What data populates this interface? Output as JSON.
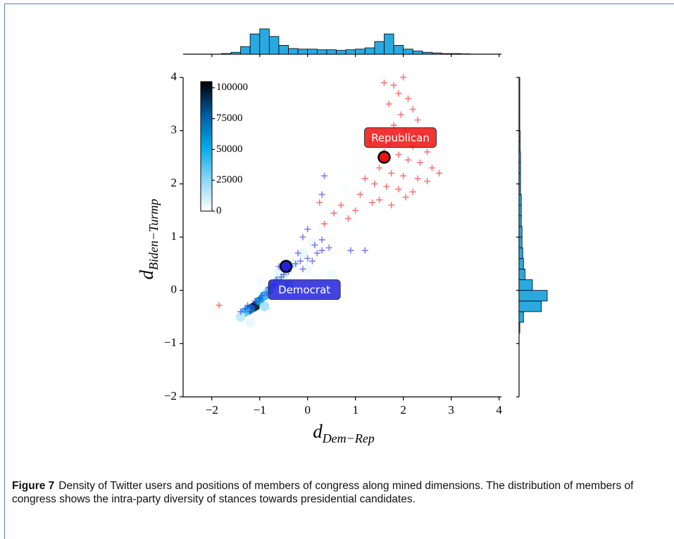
{
  "caption": {
    "label": "Figure 7",
    "text": "Density of Twitter users and positions of members of congress along mined dimensions. The distribution of members of congress shows the intra-party diversity of stances towards presidential candidates."
  },
  "chart_data": {
    "type": "scatter",
    "xlabel": {
      "main": "d",
      "sub": "Dem−Rep"
    },
    "ylabel": {
      "main": "d",
      "sub": "Biden−Turmp"
    },
    "xlim": [
      -2.6,
      4.05
    ],
    "ylim": [
      -2,
      4
    ],
    "xticks": [
      {
        "value": -2,
        "label": "−2"
      },
      {
        "value": -1,
        "label": "−1"
      },
      0,
      1,
      2,
      3,
      4
    ],
    "yticks": [
      {
        "value": -2,
        "label": "−2"
      },
      {
        "value": -1,
        "label": "−1"
      },
      0,
      1,
      2,
      3,
      4
    ],
    "series": [
      {
        "name": "Republican",
        "color": "#ee2222",
        "x": [
          1.6,
          1.8,
          2.0,
          1.9,
          2.1,
          1.7,
          2.2,
          1.95,
          2.3,
          1.8,
          2.05,
          2.4,
          1.3,
          1.7,
          2.2,
          2.5,
          1.9,
          2.1,
          2.35,
          2.6,
          1.5,
          1.75,
          2.0,
          2.3,
          2.75,
          1.2,
          1.4,
          1.65,
          1.9,
          2.2,
          1.1,
          1.5,
          1.75,
          1.0,
          0.7,
          0.55,
          0.35,
          0.85,
          1.35,
          2.05,
          2.5,
          1.6,
          -1.85,
          0.25
        ],
        "values": [
          3.9,
          3.85,
          4.0,
          3.7,
          3.6,
          3.5,
          3.4,
          3.3,
          3.2,
          3.1,
          3.0,
          2.9,
          2.8,
          2.75,
          2.7,
          2.6,
          2.55,
          2.45,
          2.4,
          2.3,
          2.3,
          2.2,
          2.15,
          2.1,
          2.2,
          2.1,
          2.0,
          1.95,
          1.9,
          1.85,
          1.8,
          1.7,
          1.6,
          1.5,
          1.6,
          1.45,
          1.25,
          1.35,
          1.65,
          1.75,
          2.05,
          2.6,
          -0.28,
          1.65
        ]
      },
      {
        "name": "Democrat",
        "color": "#2a2aee",
        "x": [
          -1.4,
          -1.3,
          -1.25,
          -1.15,
          -1.1,
          -1.0,
          -0.95,
          -0.85,
          -0.8,
          -0.7,
          -0.65,
          -0.55,
          -0.5,
          -0.4,
          -0.35,
          -0.25,
          -0.15,
          -0.1,
          0.0,
          0.1,
          0.2,
          0.3,
          0.45,
          0.3,
          0.15,
          -0.1,
          0.0,
          0.9,
          1.2,
          0.35,
          0.3,
          -0.2,
          -0.6,
          -1.2
        ],
        "values": [
          -0.4,
          -0.35,
          -0.28,
          -0.3,
          -0.2,
          -0.15,
          -0.1,
          -0.05,
          0.05,
          0.1,
          0.2,
          0.25,
          0.3,
          0.35,
          0.45,
          0.5,
          0.55,
          0.4,
          0.6,
          0.55,
          0.7,
          0.75,
          0.8,
          0.95,
          0.85,
          1.0,
          1.15,
          0.75,
          0.75,
          2.15,
          1.8,
          0.7,
          0.45,
          -0.4
        ]
      }
    ],
    "centroids": [
      {
        "name": "Republican",
        "x": 1.6,
        "y": 2.5,
        "color": "#ee1111"
      },
      {
        "name": "Democrat",
        "x": -0.45,
        "y": 0.45,
        "color": "#2222dd"
      }
    ],
    "density": {
      "x": [
        -1.1,
        -1.2,
        -1.0,
        -0.9,
        -1.3,
        -0.8,
        -0.7,
        -0.6,
        -1.4,
        -0.5,
        -0.3,
        -0.1,
        0.1,
        0.3,
        0.5,
        0.8,
        1.1,
        1.4,
        1.7,
        1.9,
        -1.2,
        -0.9,
        -0.6,
        -0.4,
        0.0,
        0.5,
        -1.0,
        0.2,
        1.0,
        0.7,
        2.2
      ],
      "y": [
        -0.3,
        -0.35,
        -0.2,
        -0.1,
        -0.4,
        0.0,
        0.1,
        0.2,
        -0.5,
        0.3,
        0.5,
        0.7,
        0.9,
        1.2,
        1.5,
        1.9,
        2.3,
        2.8,
        3.3,
        3.8,
        -0.6,
        -0.3,
        0.35,
        0.1,
        0.4,
        0.3,
        0.2,
        0.2,
        1.2,
        2.2,
        3.0
      ],
      "counts": [
        100000,
        70000,
        60000,
        45000,
        40000,
        35000,
        25000,
        20000,
        15000,
        12000,
        8000,
        5000,
        3000,
        2000,
        1500,
        1000,
        800,
        600,
        500,
        400,
        5000,
        20000,
        6000,
        30000,
        3000,
        4000,
        2000,
        2500,
        700,
        500,
        400
      ]
    },
    "colormap": [
      "#ffffff",
      "#86d6f5",
      "#00a8e8",
      "#005a9e",
      "#000000"
    ],
    "colorbar": {
      "lim": [
        0,
        105000
      ],
      "ticks": [
        0,
        25000,
        50000,
        75000,
        100000
      ]
    },
    "x_hist": {
      "color": "#29a9e0",
      "bins": [
        -1.8,
        -1.6,
        -1.4,
        -1.2,
        -1.0,
        -0.8,
        -0.6,
        -0.4,
        -0.2,
        0.0,
        0.2,
        0.4,
        0.6,
        0.8,
        1.0,
        1.2,
        1.4,
        1.6,
        1.8,
        2.0,
        2.2,
        2.4,
        2.6,
        2.8,
        3.0,
        3.2,
        3.4
      ],
      "counts": [
        1,
        3,
        12,
        32,
        40,
        28,
        14,
        9,
        8,
        8,
        7,
        7,
        6,
        7,
        8,
        10,
        20,
        32,
        14,
        8,
        5,
        3,
        2,
        1,
        1,
        0.5
      ]
    },
    "y_hist": {
      "color": "#29a9e0",
      "bins": [
        -0.8,
        -0.6,
        -0.4,
        -0.2,
        0.0,
        0.2,
        0.4,
        0.6,
        0.8,
        1.0,
        1.2,
        1.4,
        1.6,
        1.8,
        2.0,
        2.2,
        2.4,
        2.6,
        2.8,
        3.0,
        3.2,
        3.4,
        3.6,
        3.8,
        4.0
      ],
      "counts": [
        1,
        6,
        30,
        38,
        18,
        8,
        6,
        5,
        4,
        4,
        3,
        3,
        3,
        2,
        2,
        2,
        2,
        1.5,
        1.5,
        1,
        1,
        1,
        1,
        1
      ]
    }
  }
}
